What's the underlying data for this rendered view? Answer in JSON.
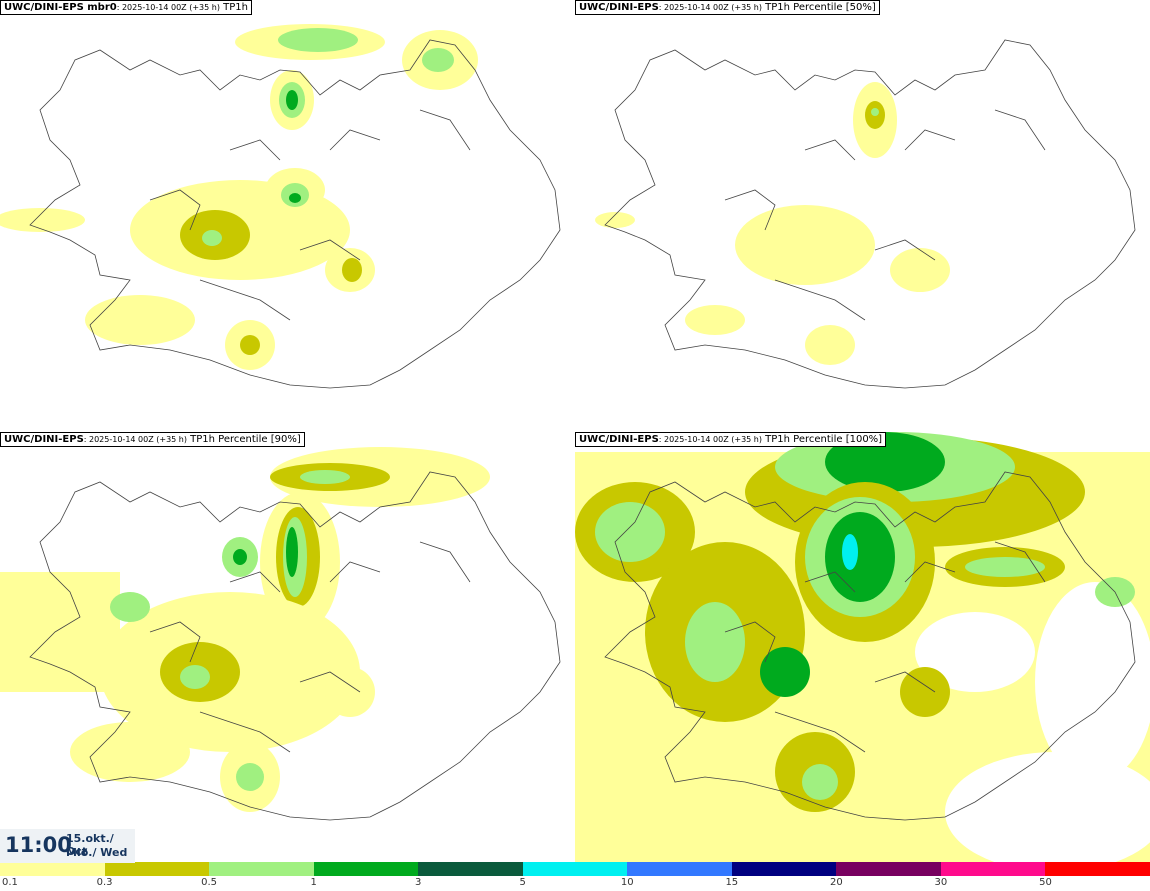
{
  "panels": [
    {
      "product": "UWC/DINI-EPS mbr0",
      "run": ": 2025-10-14 00Z (+35 h)",
      "field": " TP1h"
    },
    {
      "product": "UWC/DINI-EPS",
      "run": ": 2025-10-14 00Z (+35 h)",
      "field": " TP1h Percentile [50%]"
    },
    {
      "product": "UWC/DINI-EPS",
      "run": ": 2025-10-14 00Z (+35 h)",
      "field": " TP1h Percentile [90%]"
    },
    {
      "product": "UWC/DINI-EPS",
      "run": ": 2025-10-14 00Z (+35 h)",
      "field": " TP1h Percentile [100%]"
    }
  ],
  "valid_time": {
    "time": "11:00",
    "date_line1": "15.okt./ Oct",
    "date_line2": "Mið./ Wed"
  },
  "colorbar": {
    "colors": [
      "#ffff99",
      "#c8c800",
      "#a0f080",
      "#00aa1e",
      "#0a5a3c",
      "#00f0f0",
      "#3278ff",
      "#000080",
      "#780060",
      "#ff0a8c",
      "#ff0000"
    ],
    "labels": [
      "0.1",
      "0.3",
      "0.5",
      "1",
      "3",
      "5",
      "10",
      "15",
      "20",
      "30",
      "50"
    ]
  }
}
